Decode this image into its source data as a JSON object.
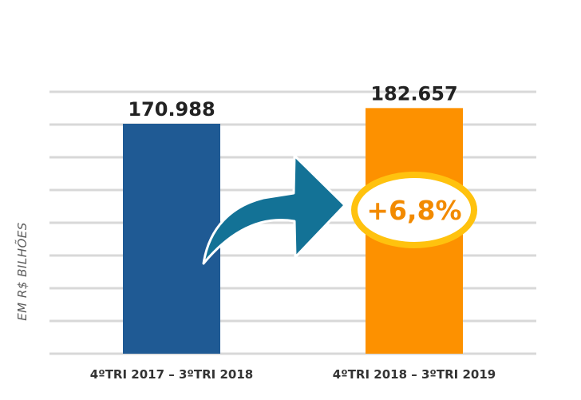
{
  "chart_data": {
    "type": "bar",
    "categories": [
      "4ºTRI 2017 – 3ºTRI 2018",
      "4ºTRI 2018 – 3ºTRI 2019"
    ],
    "values": [
      170988,
      182657
    ],
    "value_labels": [
      "170.988",
      "182.657"
    ],
    "ylabel": "EM R$ BILHÕES",
    "annotation": "+6,8%",
    "grid": true,
    "colors": [
      "#1f5a94",
      "#fd9100"
    ],
    "annotation_colors": {
      "arrow": "#137296",
      "ring": "#ffc20e",
      "text": "#f28a00"
    }
  }
}
